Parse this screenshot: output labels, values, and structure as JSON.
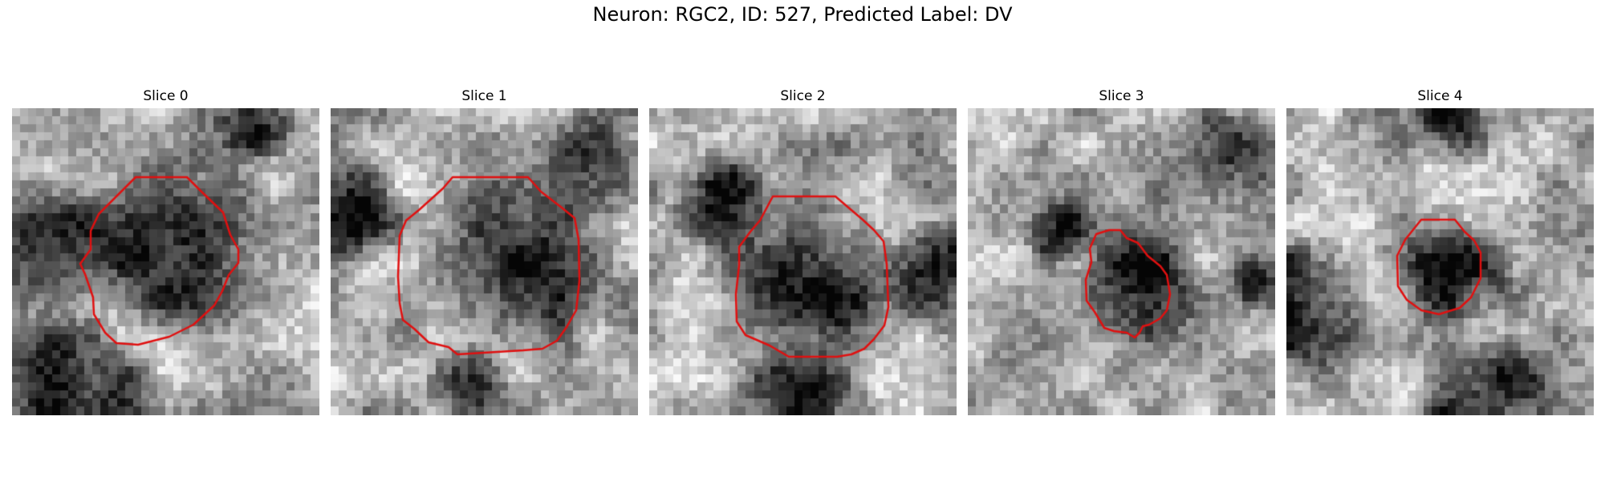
{
  "figure": {
    "title": "Neuron: RGC2, ID: 527, Predicted Label: DV"
  },
  "panels": [
    {
      "title": "Slice 0",
      "contour_color": "#e01010",
      "seed": 11,
      "dark": [
        [
          0.55,
          0.45,
          0.33
        ],
        [
          0.1,
          0.45,
          0.25
        ],
        [
          0.2,
          0.95,
          0.3
        ],
        [
          0.8,
          0.03,
          0.15
        ]
      ]
    },
    {
      "title": "Slice 1",
      "contour_color": "#e01010",
      "seed": 23,
      "dark": [
        [
          0.58,
          0.5,
          0.32
        ],
        [
          0.85,
          0.2,
          0.2
        ],
        [
          0.05,
          0.35,
          0.2
        ],
        [
          0.45,
          0.9,
          0.15
        ]
      ]
    },
    {
      "title": "Slice 2",
      "contour_color": "#e01010",
      "seed": 37,
      "dark": [
        [
          0.52,
          0.55,
          0.3
        ],
        [
          0.25,
          0.3,
          0.18
        ],
        [
          0.95,
          0.55,
          0.2
        ],
        [
          0.5,
          1.0,
          0.25
        ]
      ]
    },
    {
      "title": "Slice 3",
      "contour_color": "#e01010",
      "seed": 41,
      "dark": [
        [
          0.55,
          0.58,
          0.22
        ],
        [
          0.85,
          0.15,
          0.2
        ],
        [
          0.95,
          0.55,
          0.12
        ],
        [
          0.3,
          0.4,
          0.12
        ]
      ]
    },
    {
      "title": "Slice 4",
      "contour_color": "#e01010",
      "seed": 53,
      "dark": [
        [
          0.55,
          0.55,
          0.2
        ],
        [
          0.05,
          0.65,
          0.25
        ],
        [
          0.55,
          0.05,
          0.15
        ],
        [
          0.65,
          0.95,
          0.25
        ]
      ]
    }
  ]
}
